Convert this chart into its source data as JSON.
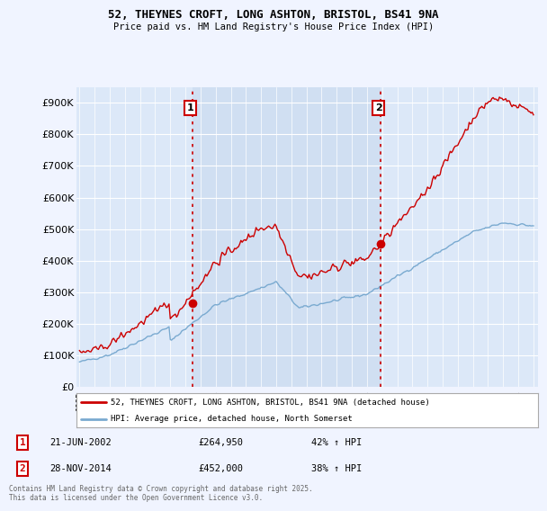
{
  "title": "52, THEYNES CROFT, LONG ASHTON, BRISTOL, BS41 9NA",
  "subtitle": "Price paid vs. HM Land Registry's House Price Index (HPI)",
  "legend_line1": "52, THEYNES CROFT, LONG ASHTON, BRISTOL, BS41 9NA (detached house)",
  "legend_line2": "HPI: Average price, detached house, North Somerset",
  "transaction1_date": "21-JUN-2002",
  "transaction1_price": "£264,950",
  "transaction1_hpi": "42% ↑ HPI",
  "transaction2_date": "28-NOV-2014",
  "transaction2_price": "£452,000",
  "transaction2_hpi": "38% ↑ HPI",
  "footer": "Contains HM Land Registry data © Crown copyright and database right 2025.\nThis data is licensed under the Open Government Licence v3.0.",
  "bg_color": "#f0f4ff",
  "plot_bg_color": "#dce8f8",
  "shaded_bg_color": "#ccdcf0",
  "grid_color": "#ffffff",
  "red_line_color": "#cc0000",
  "blue_line_color": "#7aaad0",
  "vline_color": "#cc0000",
  "ylim": [
    0,
    950000
  ],
  "yticks": [
    0,
    100000,
    200000,
    300000,
    400000,
    500000,
    600000,
    700000,
    800000,
    900000
  ],
  "year_start": 1995,
  "year_end": 2025,
  "transaction1_year": 2002.47,
  "transaction2_year": 2014.91,
  "transaction1_value": 264950,
  "transaction2_value": 452000,
  "hpi_months": [
    1995.0,
    1995.083,
    1995.167,
    1995.25,
    1995.333,
    1995.417,
    1995.5,
    1995.583,
    1995.667,
    1995.75,
    1995.833,
    1995.917,
    1996.0,
    1996.083,
    1996.167,
    1996.25,
    1996.333,
    1996.417,
    1996.5,
    1996.583,
    1996.667,
    1996.75,
    1996.833,
    1996.917,
    1997.0,
    1997.083,
    1997.167,
    1997.25,
    1997.333,
    1997.417,
    1997.5,
    1997.583,
    1997.667,
    1997.75,
    1997.833,
    1997.917,
    1998.0,
    1998.083,
    1998.167,
    1998.25,
    1998.333,
    1998.417,
    1998.5,
    1998.583,
    1998.667,
    1998.75,
    1998.833,
    1998.917,
    1999.0,
    1999.083,
    1999.167,
    1999.25,
    1999.333,
    1999.417,
    1999.5,
    1999.583,
    1999.667,
    1999.75,
    1999.833,
    1999.917,
    2000.0,
    2000.083,
    2000.167,
    2000.25,
    2000.333,
    2000.417,
    2000.5,
    2000.583,
    2000.667,
    2000.75,
    2000.833,
    2000.917,
    2001.0,
    2001.083,
    2001.167,
    2001.25,
    2001.333,
    2001.417,
    2001.5,
    2001.583,
    2001.667,
    2001.75,
    2001.833,
    2001.917,
    2002.0,
    2002.083,
    2002.167,
    2002.25,
    2002.333,
    2002.417,
    2002.5,
    2002.583,
    2002.667,
    2002.75,
    2002.833,
    2002.917,
    2003.0,
    2003.083,
    2003.167,
    2003.25,
    2003.333,
    2003.417,
    2003.5,
    2003.583,
    2003.667,
    2003.75,
    2003.833,
    2003.917,
    2004.0,
    2004.083,
    2004.167,
    2004.25,
    2004.333,
    2004.417,
    2004.5,
    2004.583,
    2004.667,
    2004.75,
    2004.833,
    2004.917,
    2005.0,
    2005.083,
    2005.167,
    2005.25,
    2005.333,
    2005.417,
    2005.5,
    2005.583,
    2005.667,
    2005.75,
    2005.833,
    2005.917,
    2006.0,
    2006.083,
    2006.167,
    2006.25,
    2006.333,
    2006.417,
    2006.5,
    2006.583,
    2006.667,
    2006.75,
    2006.833,
    2006.917,
    2007.0,
    2007.083,
    2007.167,
    2007.25,
    2007.333,
    2007.417,
    2007.5,
    2007.583,
    2007.667,
    2007.75,
    2007.833,
    2007.917,
    2008.0,
    2008.083,
    2008.167,
    2008.25,
    2008.333,
    2008.417,
    2008.5,
    2008.583,
    2008.667,
    2008.75,
    2008.833,
    2008.917,
    2009.0,
    2009.083,
    2009.167,
    2009.25,
    2009.333,
    2009.417,
    2009.5,
    2009.583,
    2009.667,
    2009.75,
    2009.833,
    2009.917,
    2010.0,
    2010.083,
    2010.167,
    2010.25,
    2010.333,
    2010.417,
    2010.5,
    2010.583,
    2010.667,
    2010.75,
    2010.833,
    2010.917,
    2011.0,
    2011.083,
    2011.167,
    2011.25,
    2011.333,
    2011.417,
    2011.5,
    2011.583,
    2011.667,
    2011.75,
    2011.833,
    2011.917,
    2012.0,
    2012.083,
    2012.167,
    2012.25,
    2012.333,
    2012.417,
    2012.5,
    2012.583,
    2012.667,
    2012.75,
    2012.833,
    2012.917,
    2013.0,
    2013.083,
    2013.167,
    2013.25,
    2013.333,
    2013.417,
    2013.5,
    2013.583,
    2013.667,
    2013.75,
    2013.833,
    2013.917,
    2014.0,
    2014.083,
    2014.167,
    2014.25,
    2014.333,
    2014.417,
    2014.5,
    2014.583,
    2014.667,
    2014.75,
    2014.833,
    2014.917,
    2015.0,
    2015.083,
    2015.167,
    2015.25,
    2015.333,
    2015.417,
    2015.5,
    2015.583,
    2015.667,
    2015.75,
    2015.833,
    2015.917,
    2016.0,
    2016.083,
    2016.167,
    2016.25,
    2016.333,
    2016.417,
    2016.5,
    2016.583,
    2016.667,
    2016.75,
    2016.833,
    2016.917,
    2017.0,
    2017.083,
    2017.167,
    2017.25,
    2017.333,
    2017.417,
    2017.5,
    2017.583,
    2017.667,
    2017.75,
    2017.833,
    2017.917,
    2018.0,
    2018.083,
    2018.167,
    2018.25,
    2018.333,
    2018.417,
    2018.5,
    2018.583,
    2018.667,
    2018.75,
    2018.833,
    2018.917,
    2019.0,
    2019.083,
    2019.167,
    2019.25,
    2019.333,
    2019.417,
    2019.5,
    2019.583,
    2019.667,
    2019.75,
    2019.833,
    2019.917,
    2020.0,
    2020.083,
    2020.167,
    2020.25,
    2020.333,
    2020.417,
    2020.5,
    2020.583,
    2020.667,
    2020.75,
    2020.833,
    2020.917,
    2021.0,
    2021.083,
    2021.167,
    2021.25,
    2021.333,
    2021.417,
    2021.5,
    2021.583,
    2021.667,
    2021.75,
    2021.833,
    2021.917,
    2022.0,
    2022.083,
    2022.167,
    2022.25,
    2022.333,
    2022.417,
    2022.5,
    2022.583,
    2022.667,
    2022.75,
    2022.833,
    2022.917,
    2023.0,
    2023.083,
    2023.167,
    2023.25,
    2023.333,
    2023.417,
    2023.5,
    2023.583,
    2023.667,
    2023.75,
    2023.833,
    2023.917,
    2024.0,
    2024.083,
    2024.167,
    2024.25,
    2024.333,
    2024.417,
    2024.5,
    2024.583,
    2024.667,
    2024.75,
    2024.833,
    2024.917,
    2025.0
  ]
}
